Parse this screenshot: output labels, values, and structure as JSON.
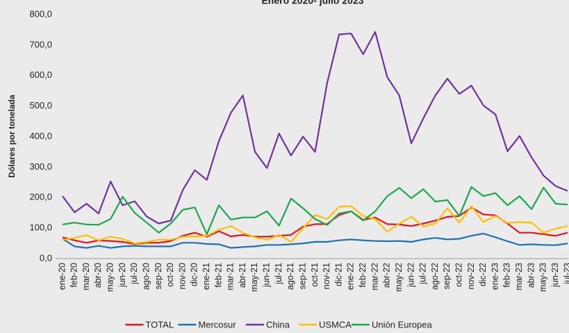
{
  "chart_data": {
    "type": "line",
    "title": "Enero 2020- julio 2023",
    "y_label": "Dólares por tonelada",
    "categories": [
      "ene-20",
      "feb-20",
      "mar-20",
      "abr-20",
      "may-20",
      "jun-20",
      "jul-20",
      "ago-20",
      "sep-20",
      "oct-20",
      "nov-20",
      "dic-20",
      "ene-21",
      "feb-21",
      "mar-21",
      "abr-21",
      "may-21",
      "jun-21",
      "jul-21",
      "ago-21",
      "sep-21",
      "oct-21",
      "nov-21",
      "dic-21",
      "ene-22",
      "feb-22",
      "mar-22",
      "abr-22",
      "may-22",
      "jun-22",
      "jul-22",
      "ago-22",
      "sep-22",
      "oct-22",
      "nov-22",
      "dic-22",
      "ene-23",
      "feb-23",
      "mar-23",
      "abr-23",
      "may-23",
      "jun-23",
      "jul-23"
    ],
    "series": [
      {
        "name": "TOTAL",
        "color": "#e8141b",
        "values": [
          70,
          60,
          52,
          60,
          58,
          55,
          48,
          52,
          52,
          58,
          75,
          85,
          72,
          90,
          73,
          78,
          72,
          72,
          75,
          78,
          105,
          113,
          113,
          143,
          155,
          127,
          135,
          113,
          112,
          107,
          115,
          125,
          137,
          140,
          168,
          145,
          142,
          115,
          85,
          85,
          80,
          75,
          85
        ]
      },
      {
        "name": "Mercosur",
        "color": "#1f6fb4",
        "values": [
          65,
          40,
          35,
          42,
          35,
          40,
          42,
          40,
          40,
          40,
          52,
          52,
          48,
          47,
          35,
          38,
          40,
          45,
          45,
          47,
          50,
          55,
          55,
          60,
          63,
          60,
          58,
          57,
          58,
          55,
          63,
          68,
          63,
          65,
          75,
          82,
          70,
          57,
          45,
          47,
          45,
          44,
          50
        ]
      },
      {
        "name": "China",
        "color": "#7030a0",
        "values": [
          205,
          152,
          180,
          148,
          253,
          175,
          188,
          138,
          115,
          125,
          225,
          290,
          258,
          385,
          478,
          535,
          350,
          297,
          410,
          338,
          400,
          350,
          575,
          735,
          738,
          670,
          743,
          595,
          535,
          378,
          460,
          535,
          590,
          540,
          567,
          502,
          473,
          352,
          402,
          332,
          272,
          238,
          222
        ]
      },
      {
        "name": "USMCA",
        "color": "#ffc000",
        "values": [
          62,
          68,
          77,
          60,
          72,
          65,
          50,
          55,
          62,
          62,
          72,
          73,
          75,
          95,
          107,
          85,
          70,
          62,
          78,
          55,
          100,
          143,
          130,
          170,
          172,
          140,
          130,
          88,
          115,
          137,
          105,
          115,
          165,
          118,
          172,
          120,
          140,
          117,
          120,
          118,
          85,
          98,
          107
        ]
      },
      {
        "name": "Unión Europea",
        "color": "#19a74a",
        "values": [
          112,
          118,
          112,
          111,
          130,
          203,
          150,
          118,
          85,
          115,
          160,
          168,
          80,
          175,
          128,
          135,
          135,
          155,
          108,
          197,
          165,
          130,
          110,
          148,
          155,
          125,
          155,
          205,
          232,
          198,
          228,
          187,
          192,
          140,
          235,
          205,
          215,
          175,
          205,
          162,
          233,
          180,
          177
        ]
      }
    ],
    "ylim": [
      0,
      800
    ],
    "yticks": [
      {
        "value": 0,
        "label": "0,0"
      },
      {
        "value": 100,
        "label": "100,0"
      },
      {
        "value": 200,
        "label": "200,0"
      },
      {
        "value": 300,
        "label": "300,0"
      },
      {
        "value": 400,
        "label": "400,0"
      },
      {
        "value": 500,
        "label": "500,0"
      },
      {
        "value": 600,
        "label": "600,0"
      },
      {
        "value": 700,
        "label": "700,0"
      },
      {
        "value": 800,
        "label": "800,0"
      }
    ]
  }
}
